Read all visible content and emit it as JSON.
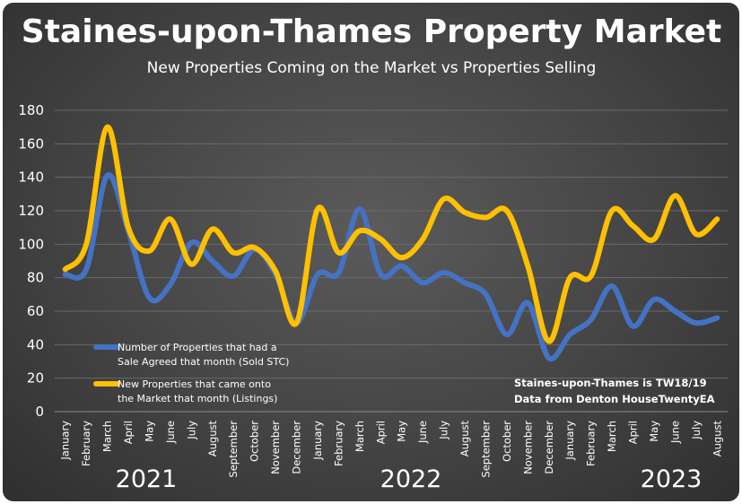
{
  "chart_data": {
    "type": "line",
    "title": "Staines-upon-Thames Property Market",
    "subtitle": "New Properties Coming on the Market vs Properties Selling",
    "x": [
      "January",
      "February",
      "March",
      "April",
      "May",
      "June",
      "July",
      "August",
      "September",
      "October",
      "November",
      "December",
      "January",
      "February",
      "March",
      "April",
      "May",
      "June",
      "July",
      "August",
      "September",
      "October",
      "November",
      "December",
      "January",
      "February",
      "March",
      "April",
      "May",
      "June",
      "July",
      "August"
    ],
    "years": [
      {
        "label": "2021",
        "start_index": 0,
        "end_index": 11
      },
      {
        "label": "2022",
        "start_index": 12,
        "end_index": 23
      },
      {
        "label": "2023",
        "start_index": 24,
        "end_index": 31
      }
    ],
    "ylim": [
      0,
      180
    ],
    "yticks": [
      0,
      20,
      40,
      60,
      80,
      100,
      120,
      140,
      160,
      180
    ],
    "grid": true,
    "legend_position": "bottom-left",
    "series": [
      {
        "name": "Number of Properties that had a Sale Agreed  that month (Sold STC)",
        "legend_lines": [
          "Number of Properties that had a",
          "Sale Agreed  that month (Sold STC)"
        ],
        "color": "#4472C4",
        "values": [
          82,
          85,
          141,
          108,
          68,
          76,
          101,
          90,
          81,
          97,
          82,
          53,
          82,
          83,
          121,
          82,
          87,
          77,
          83,
          77,
          70,
          46,
          65,
          32,
          46,
          55,
          75,
          51,
          67,
          60,
          53,
          56
        ]
      },
      {
        "name": "New Properties that came onto the Market that month (Listings)",
        "legend_lines": [
          "New Properties that came onto",
          "the Market that month (Listings)"
        ],
        "color": "#FFC000",
        "values": [
          85,
          100,
          170,
          110,
          96,
          115,
          88,
          109,
          95,
          98,
          84,
          53,
          121,
          95,
          108,
          103,
          92,
          103,
          127,
          119,
          116,
          120,
          87,
          42,
          80,
          81,
          120,
          111,
          103,
          129,
          106,
          115
        ]
      }
    ],
    "annotations": [
      "Staines-upon-Thames is TW18/19",
      "Data from Denton HouseTwentyEA"
    ]
  }
}
